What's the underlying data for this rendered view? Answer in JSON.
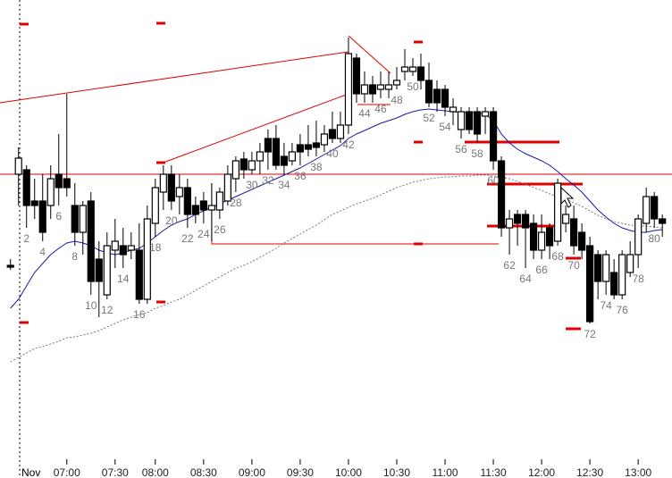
{
  "chart_data": {
    "type": "candlestick",
    "date_label": "Nov",
    "xlim": [
      -1.3,
      82.2
    ],
    "ylim": [
      0,
      535
    ],
    "xticks": [
      {
        "value": 7,
        "label": "07:00"
      },
      {
        "value": 13,
        "label": "07:30"
      },
      {
        "value": 18,
        "label": "08:00"
      },
      {
        "value": 24,
        "label": "08:30"
      },
      {
        "value": 30,
        "label": "09:00"
      },
      {
        "value": 36,
        "label": "09:30"
      },
      {
        "value": 42,
        "label": "10:00"
      },
      {
        "value": 48,
        "label": "10:30"
      },
      {
        "value": 54,
        "label": "11:00"
      },
      {
        "value": 60,
        "label": "11:30"
      },
      {
        "value": 66,
        "label": "12:00"
      },
      {
        "value": 72,
        "label": "12:30"
      },
      {
        "value": 78,
        "label": "13:00"
      }
    ],
    "up_color": "#ffffff",
    "down_color": "#000000",
    "candles": {
      "open": [
        238,
        340,
        345,
        310,
        310,
        305,
        340,
        335,
        305,
        275,
        310,
        245,
        205,
        255,
        260,
        255,
        255,
        200,
        285,
        320,
        340,
        315,
        325,
        305,
        310,
        300,
        300,
        310,
        335,
        357,
        345,
        355,
        380,
        380,
        360,
        355,
        373,
        373,
        375,
        373,
        390,
        380,
        395,
        470,
        430,
        440,
        435,
        435,
        440,
        455,
        455,
        460,
        445,
        435,
        435,
        410,
        390,
        410,
        410,
        405,
        410,
        355,
        280,
        295,
        295,
        285,
        255,
        280,
        265,
        285,
        290,
        275,
        260,
        250,
        220,
        230,
        205,
        230,
        250,
        285,
        315,
        290
      ],
      "high": [
        245,
        370,
        350,
        335,
        340,
        350,
        385,
        430,
        330,
        310,
        320,
        265,
        275,
        290,
        280,
        275,
        285,
        305,
        335,
        350,
        350,
        340,
        335,
        315,
        320,
        330,
        325,
        350,
        360,
        365,
        365,
        375,
        390,
        395,
        375,
        375,
        385,
        395,
        400,
        395,
        410,
        410,
        493,
        475,
        455,
        450,
        455,
        455,
        460,
        480,
        470,
        475,
        465,
        445,
        440,
        425,
        415,
        415,
        415,
        415,
        415,
        360,
        300,
        300,
        300,
        295,
        295,
        285,
        335,
        305,
        305,
        285,
        270,
        255,
        255,
        245,
        255,
        265,
        295,
        325,
        320,
        295
      ],
      "low": [
        233,
        305,
        280,
        290,
        265,
        290,
        305,
        315,
        260,
        250,
        205,
        180,
        200,
        235,
        235,
        245,
        195,
        195,
        270,
        300,
        300,
        295,
        280,
        285,
        285,
        265,
        290,
        305,
        320,
        335,
        340,
        340,
        345,
        345,
        340,
        350,
        350,
        360,
        360,
        365,
        375,
        375,
        385,
        420,
        420,
        420,
        425,
        425,
        435,
        445,
        450,
        435,
        415,
        410,
        405,
        395,
        380,
        385,
        375,
        385,
        345,
        270,
        250,
        260,
        235,
        245,
        245,
        245,
        260,
        275,
        250,
        245,
        173,
        200,
        205,
        200,
        200,
        225,
        235,
        275,
        280,
        270
      ],
      "close": [
        236,
        358,
        305,
        305,
        275,
        335,
        325,
        325,
        275,
        305,
        220,
        220,
        260,
        265,
        250,
        260,
        200,
        290,
        325,
        340,
        310,
        325,
        295,
        295,
        300,
        305,
        320,
        340,
        355,
        345,
        355,
        365,
        365,
        350,
        350,
        365,
        365,
        368,
        370,
        385,
        380,
        395,
        475,
        430,
        440,
        430,
        440,
        440,
        445,
        460,
        460,
        445,
        420,
        420,
        415,
        415,
        410,
        390,
        385,
        410,
        355,
        280,
        290,
        285,
        280,
        255,
        275,
        260,
        330,
        295,
        260,
        255,
        175,
        220,
        250,
        205,
        250,
        250,
        290,
        315,
        290,
        285
      ]
    },
    "overlays": [
      {
        "color": "#1a1aa8",
        "values": [
          190,
          200,
          215,
          230,
          240,
          250,
          257,
          263,
          265,
          263,
          260,
          255,
          252,
          250,
          252,
          255,
          257,
          263,
          270,
          277,
          283,
          287,
          290,
          295,
          299,
          303,
          307,
          311,
          315,
          319,
          323,
          327,
          331,
          335,
          339,
          343,
          347,
          352,
          357,
          362,
          367,
          372,
          380,
          385,
          389,
          393,
          397,
          400,
          403,
          407,
          410,
          412,
          413,
          412,
          411,
          410,
          409,
          409,
          409,
          407,
          400,
          385,
          375,
          368,
          363,
          359,
          355,
          350,
          343,
          335,
          328,
          320,
          310,
          300,
          292,
          285,
          280,
          277,
          275,
          275,
          277,
          278
        ]
      },
      {
        "color": "#777777",
        "dashed": true,
        "values": [
          130,
          135,
          140,
          145,
          147,
          150,
          153,
          157,
          158,
          160,
          162,
          165,
          169,
          173,
          177,
          180,
          183,
          185,
          190,
          193,
          197,
          200,
          205,
          210,
          215,
          220,
          225,
          230,
          235,
          238,
          242,
          247,
          252,
          257,
          263,
          268,
          273,
          278,
          283,
          289,
          295,
          299,
          303,
          307,
          310,
          313,
          317,
          321,
          325,
          328,
          331,
          333,
          335,
          336,
          337,
          337,
          338,
          338,
          339,
          339,
          338,
          337,
          335,
          332,
          329,
          325,
          322,
          318,
          315,
          312,
          308,
          304,
          299,
          294,
          290,
          287,
          285,
          283,
          282,
          282,
          281,
          280
        ]
      }
    ],
    "bar_numbers": [
      2,
      4,
      6,
      8,
      10,
      12,
      14,
      16,
      18,
      20,
      22,
      24,
      26,
      28,
      30,
      32,
      34,
      36,
      38,
      40,
      42,
      44,
      46,
      48,
      50,
      52,
      54,
      56,
      58,
      60,
      62,
      64,
      66,
      68,
      70,
      72,
      74,
      76,
      78,
      80
    ]
  }
}
